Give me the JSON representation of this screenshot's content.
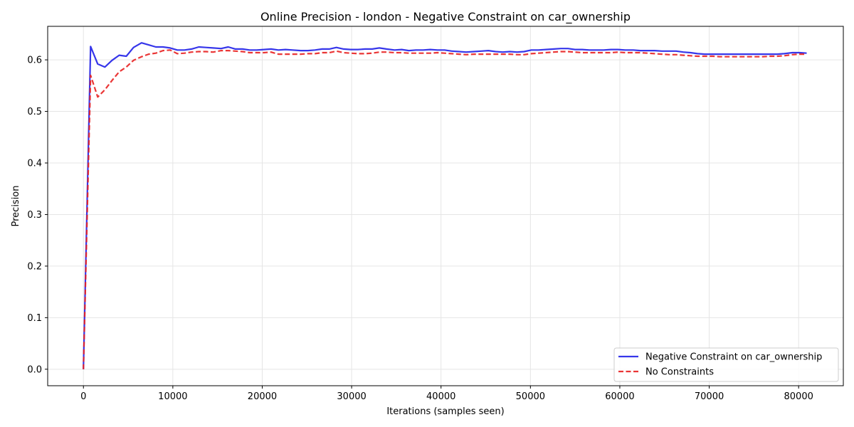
{
  "chart_data": {
    "type": "line",
    "title": "Online Precision - london - Negative Constraint on car_ownership",
    "xlabel": "Iterations (samples seen)",
    "ylabel": "Precision",
    "xlim": [
      -4000,
      85000
    ],
    "ylim": [
      -0.032,
      0.665
    ],
    "xticks": [
      0,
      10000,
      20000,
      30000,
      40000,
      50000,
      60000,
      70000,
      80000
    ],
    "yticks": [
      0.0,
      0.1,
      0.2,
      0.3,
      0.4,
      0.5,
      0.6
    ],
    "xtick_labels": [
      "0",
      "10000",
      "20000",
      "30000",
      "40000",
      "50000",
      "60000",
      "70000",
      "80000"
    ],
    "ytick_labels": [
      "0.0",
      "0.1",
      "0.2",
      "0.3",
      "0.4",
      "0.5",
      "0.6"
    ],
    "grid": true,
    "legend_position": "lower-right",
    "series": [
      {
        "name": "Negative Constraint on car_ownership",
        "color": "#2020e8",
        "style": "solid",
        "x": [
          0,
          800,
          1600,
          2400,
          3200,
          4000,
          4800,
          5600,
          6500,
          7300,
          8100,
          8900,
          9700,
          10500,
          11300,
          12100,
          12900,
          13700,
          14500,
          15400,
          16200,
          17000,
          17800,
          18600,
          19400,
          20200,
          21000,
          21800,
          22600,
          23400,
          24300,
          25100,
          25900,
          26700,
          27500,
          28300,
          29100,
          29900,
          30700,
          31500,
          32300,
          33100,
          33900,
          34800,
          35600,
          36400,
          37200,
          38000,
          38800,
          39600,
          40400,
          41200,
          42000,
          42800,
          43700,
          44500,
          45300,
          46100,
          46900,
          47700,
          48500,
          49300,
          50100,
          50900,
          51700,
          52600,
          53400,
          54200,
          55000,
          55800,
          56600,
          57400,
          58200,
          59000,
          59800,
          60600,
          61500,
          62300,
          63100,
          63900,
          64700,
          65500,
          66300,
          67100,
          67900,
          68700,
          69500,
          70400,
          71200,
          72000,
          72800,
          73600,
          74400,
          75200,
          76000,
          76800,
          77600,
          78400,
          79300,
          80100,
          80900
        ],
        "values": [
          0.0,
          0.626,
          0.592,
          0.586,
          0.599,
          0.609,
          0.607,
          0.624,
          0.633,
          0.629,
          0.625,
          0.625,
          0.623,
          0.619,
          0.619,
          0.621,
          0.625,
          0.624,
          0.623,
          0.622,
          0.625,
          0.621,
          0.621,
          0.619,
          0.619,
          0.62,
          0.621,
          0.619,
          0.62,
          0.619,
          0.618,
          0.618,
          0.619,
          0.621,
          0.621,
          0.624,
          0.621,
          0.62,
          0.62,
          0.621,
          0.621,
          0.623,
          0.621,
          0.619,
          0.62,
          0.618,
          0.619,
          0.619,
          0.62,
          0.619,
          0.619,
          0.617,
          0.616,
          0.615,
          0.616,
          0.617,
          0.618,
          0.616,
          0.615,
          0.616,
          0.615,
          0.616,
          0.619,
          0.619,
          0.62,
          0.621,
          0.622,
          0.622,
          0.62,
          0.62,
          0.619,
          0.619,
          0.619,
          0.62,
          0.62,
          0.619,
          0.619,
          0.618,
          0.618,
          0.618,
          0.617,
          0.617,
          0.617,
          0.615,
          0.614,
          0.612,
          0.611,
          0.611,
          0.611,
          0.611,
          0.611,
          0.611,
          0.611,
          0.611,
          0.611,
          0.611,
          0.611,
          0.612,
          0.614,
          0.614,
          0.613
        ]
      },
      {
        "name": "No Constraints",
        "color": "#e82020",
        "style": "dashed",
        "x": [
          0,
          800,
          1600,
          2400,
          3200,
          4000,
          4800,
          5600,
          6500,
          7300,
          8100,
          8900,
          9700,
          10500,
          11300,
          12100,
          12900,
          13700,
          14500,
          15400,
          16200,
          17000,
          17800,
          18600,
          19400,
          20200,
          21000,
          21800,
          22600,
          23400,
          24300,
          25100,
          25900,
          26700,
          27500,
          28300,
          29100,
          29900,
          30700,
          31500,
          32300,
          33100,
          33900,
          34800,
          35600,
          36400,
          37200,
          38000,
          38800,
          39600,
          40400,
          41200,
          42000,
          42800,
          43700,
          44500,
          45300,
          46100,
          46900,
          47700,
          48500,
          49300,
          50100,
          50900,
          51700,
          52600,
          53400,
          54200,
          55000,
          55800,
          56600,
          57400,
          58200,
          59000,
          59800,
          60600,
          61500,
          62300,
          63100,
          63900,
          64700,
          65500,
          66300,
          67100,
          67900,
          68700,
          69500,
          70400,
          71200,
          72000,
          72800,
          73600,
          74400,
          75200,
          76000,
          76800,
          77600,
          78400,
          79300,
          80100,
          80900
        ],
        "values": [
          0.0,
          0.57,
          0.528,
          0.542,
          0.56,
          0.577,
          0.586,
          0.599,
          0.606,
          0.611,
          0.613,
          0.618,
          0.619,
          0.612,
          0.613,
          0.615,
          0.616,
          0.616,
          0.615,
          0.618,
          0.618,
          0.617,
          0.616,
          0.614,
          0.614,
          0.614,
          0.615,
          0.611,
          0.611,
          0.611,
          0.611,
          0.612,
          0.612,
          0.614,
          0.614,
          0.617,
          0.614,
          0.613,
          0.612,
          0.612,
          0.613,
          0.615,
          0.615,
          0.614,
          0.614,
          0.613,
          0.613,
          0.613,
          0.613,
          0.614,
          0.613,
          0.612,
          0.611,
          0.61,
          0.611,
          0.611,
          0.611,
          0.611,
          0.611,
          0.611,
          0.61,
          0.61,
          0.612,
          0.613,
          0.614,
          0.615,
          0.616,
          0.616,
          0.615,
          0.614,
          0.614,
          0.614,
          0.614,
          0.614,
          0.615,
          0.614,
          0.614,
          0.614,
          0.613,
          0.612,
          0.611,
          0.61,
          0.61,
          0.609,
          0.608,
          0.607,
          0.607,
          0.607,
          0.606,
          0.606,
          0.606,
          0.606,
          0.606,
          0.606,
          0.606,
          0.607,
          0.607,
          0.608,
          0.61,
          0.611,
          0.611
        ]
      }
    ]
  }
}
